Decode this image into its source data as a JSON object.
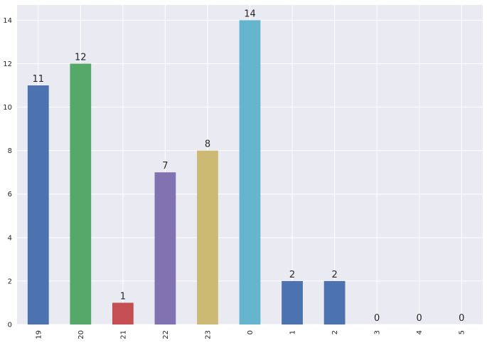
{
  "chart_data": {
    "type": "bar",
    "title": "",
    "xlabel": "",
    "ylabel": "",
    "categories": [
      "19",
      "20",
      "21",
      "22",
      "23",
      "0",
      "1",
      "2",
      "3",
      "4",
      "5"
    ],
    "values": [
      11,
      12,
      1,
      7,
      8,
      14,
      2,
      2,
      0,
      0,
      0
    ],
    "data_labels": [
      "11",
      "12",
      "1",
      "7",
      "8",
      "14",
      "2",
      "2",
      "0",
      "0",
      "0"
    ],
    "bar_colors": [
      "#4C72B0",
      "#55A868",
      "#C44E52",
      "#8172B2",
      "#CCB974",
      "#64B5CD",
      "#4C72B0",
      "#4C72B0",
      "#55A868",
      "#C44E52",
      "#8172B2"
    ],
    "ylim": [
      0,
      14.7
    ],
    "yticks": [
      0,
      2,
      4,
      6,
      8,
      10,
      12,
      14
    ],
    "ytick_labels": [
      "0",
      "2",
      "4",
      "6",
      "8",
      "10",
      "12",
      "14"
    ],
    "grid": true,
    "x_tick_rotation": "vertical",
    "background_color": "#EAEAF2",
    "grid_color": "#FFFFFF"
  }
}
